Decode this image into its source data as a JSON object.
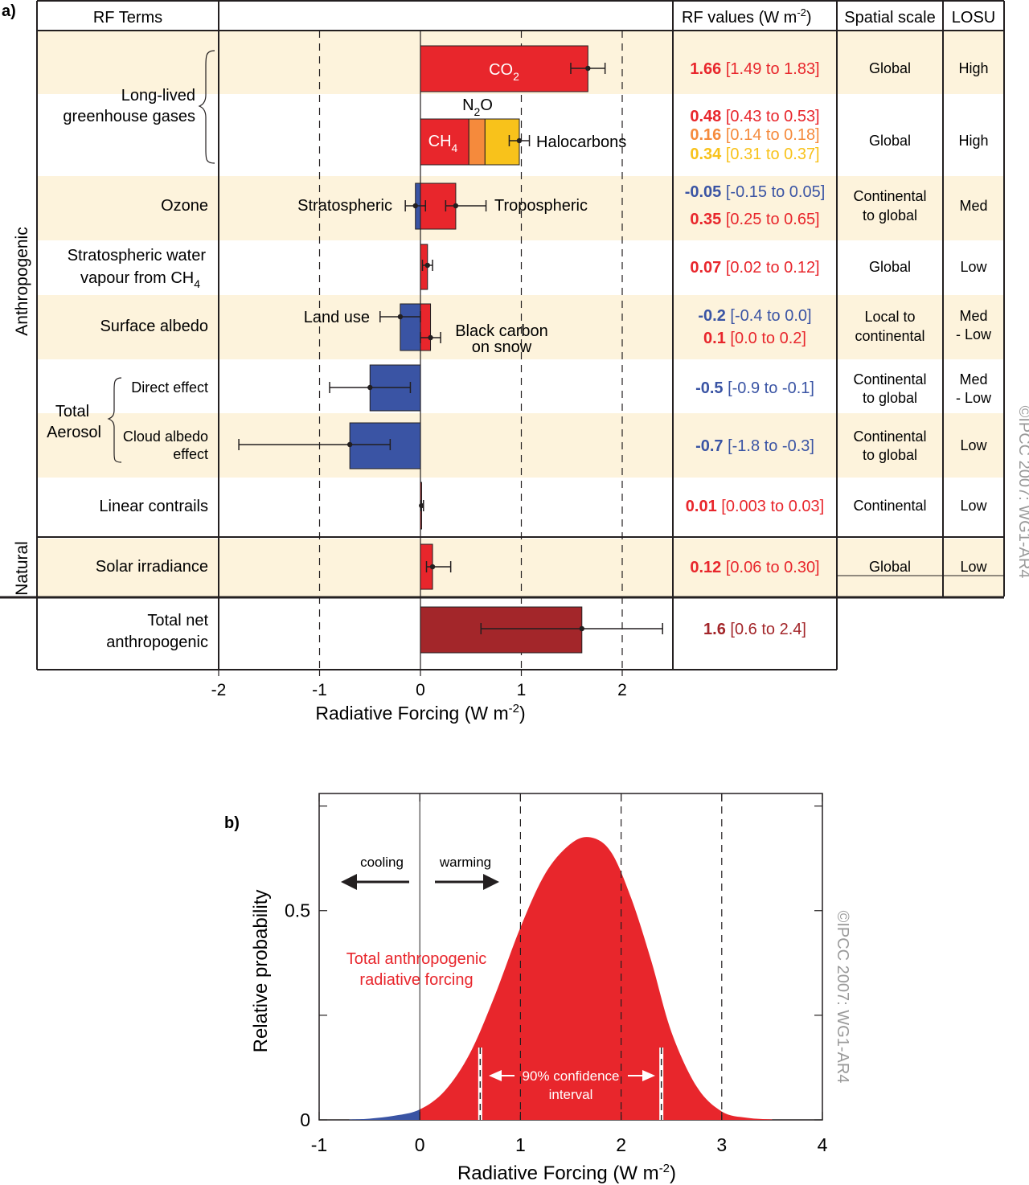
{
  "panel_a": {
    "panel_label": "a)",
    "headers": {
      "rf_terms": "RF Terms",
      "rf_values": "RF values (W m",
      "rf_values_exp": "-2",
      "rf_values_close": ")",
      "spatial_scale": "Spatial scale",
      "losu": "LOSU"
    },
    "groups": {
      "anthropogenic": "Anthropogenic",
      "natural": "Natural",
      "long_lived_line1": "Long-lived",
      "long_lived_line2": "greenhouse gases",
      "total_aerosol_line1": "Total",
      "total_aerosol_line2": "Aerosol"
    },
    "row_labels": {
      "ozone": "Ozone",
      "strat_water_line1": "Stratospheric water",
      "strat_water_line2": "vapour from CH",
      "strat_water_sub": "4",
      "surface_albedo": "Surface albedo",
      "direct_effect": "Direct effect",
      "cloud_albedo_line1": "Cloud albedo",
      "cloud_albedo_line2": "effect",
      "linear_contrails": "Linear contrails",
      "solar_irradiance": "Solar irradiance",
      "total_net_line1": "Total net",
      "total_net_line2": "anthropogenic"
    },
    "bar_labels": {
      "co2": "CO",
      "co2_sub": "2",
      "ch4": "CH",
      "ch4_sub": "4",
      "n2o": "N",
      "n2o_sub": "2",
      "n2o_tail": "O",
      "halocarbons": "Halocarbons",
      "stratospheric": "Stratospheric",
      "tropospheric": "Tropospheric",
      "land_use": "Land use",
      "black_carbon_line1": "Black carbon",
      "black_carbon_line2": "on snow"
    },
    "rf_values": [
      {
        "bold": "1.66",
        "range": "[1.49 to 1.83]",
        "color": "#e8262c"
      },
      {
        "bold": "0.48",
        "range": "[0.43 to 0.53]",
        "color": "#e8262c"
      },
      {
        "bold": "0.16",
        "range": "[0.14 to 0.18]",
        "color": "#f58a3c"
      },
      {
        "bold": "0.34",
        "range": "[0.31 to 0.37]",
        "color": "#f8c21b"
      },
      {
        "bold": "-0.05",
        "range": "[-0.15 to 0.05]",
        "color": "#3a54a4"
      },
      {
        "bold": "0.35",
        "range": "[0.25 to 0.65]",
        "color": "#e8262c"
      },
      {
        "bold": "0.07",
        "range": "[0.02 to 0.12]",
        "color": "#e8262c"
      },
      {
        "bold": "-0.2",
        "range": "[-0.4 to 0.0]",
        "color": "#3a54a4"
      },
      {
        "bold": "0.1",
        "range": "[0.0 to 0.2]",
        "color": "#e8262c"
      },
      {
        "bold": "-0.5",
        "range": "[-0.9 to -0.1]",
        "color": "#3a54a4"
      },
      {
        "bold": "-0.7",
        "range": "[-1.8 to -0.3]",
        "color": "#3a54a4"
      },
      {
        "bold": "0.01",
        "range": "[0.003 to 0.03]",
        "color": "#e8262c"
      },
      {
        "bold": "0.12",
        "range": "[0.06 to 0.30]",
        "color": "#e8262c"
      },
      {
        "bold": "1.6",
        "range": "[0.6 to 2.4]",
        "color": "#a3262a"
      }
    ],
    "spatial_scale": {
      "co2": "Global",
      "ghg": "Global",
      "ozone_line1": "Continental",
      "ozone_line2": "to global",
      "strat_water": "Global",
      "albedo_line1": "Local to",
      "albedo_line2": "continental",
      "direct_line1": "Continental",
      "direct_line2": "to global",
      "cloud_line1": "Continental",
      "cloud_line2": "to global",
      "contrails": "Continental",
      "solar": "Global"
    },
    "losu": {
      "co2": "High",
      "ghg": "High",
      "ozone": "Med",
      "strat_water": "Low",
      "albedo_line1": "Med",
      "albedo_line2": "- Low",
      "direct_line1": "Med",
      "direct_line2": "- Low",
      "cloud": "Low",
      "contrails": "Low",
      "solar": "Low"
    },
    "copyright": "©IPCC  2007: WG1-AR4"
  },
  "panel_b": {
    "panel_label": "b)",
    "cooling": "cooling",
    "warming": "warming",
    "annotation_line1": "Total anthropogenic",
    "annotation_line2": "radiative forcing",
    "ci_line1": "90% confidence",
    "ci_line2": "interval",
    "copyright": "©IPCC  2007: WG1-AR4"
  },
  "chart_data": [
    {
      "type": "bar",
      "orientation": "horizontal",
      "xlabel": "Radiative Forcing  (W m-2)",
      "xlim": [
        -2,
        2.5
      ],
      "xticks": [
        "-2",
        "-1",
        "0",
        "1",
        "2"
      ],
      "x_tick_values": [
        -2,
        -1,
        0,
        1,
        2
      ],
      "grid": "dashed vertical lines at -1, 1, 2",
      "bars": [
        {
          "term": "CO2",
          "value": 1.66,
          "low": 1.49,
          "high": 1.83,
          "color": "#e8262c"
        },
        {
          "term": "CH4",
          "value": 0.48,
          "low": 0.43,
          "high": 0.53,
          "color": "#e8262c",
          "stack": "ghg"
        },
        {
          "term": "N2O",
          "value": 0.16,
          "low": 0.14,
          "high": 0.18,
          "color": "#f58a3c",
          "stack": "ghg"
        },
        {
          "term": "Halocarbons",
          "value": 0.34,
          "low": 0.31,
          "high": 0.37,
          "color": "#f8c21b",
          "stack": "ghg"
        },
        {
          "term": "Stratospheric ozone",
          "value": -0.05,
          "low": -0.15,
          "high": 0.05,
          "color": "#3a54a4"
        },
        {
          "term": "Tropospheric ozone",
          "value": 0.35,
          "low": 0.25,
          "high": 0.65,
          "color": "#e8262c"
        },
        {
          "term": "Stratospheric water vapour from CH4",
          "value": 0.07,
          "low": 0.02,
          "high": 0.12,
          "color": "#e8262c"
        },
        {
          "term": "Land use",
          "value": -0.2,
          "low": -0.4,
          "high": 0.0,
          "color": "#3a54a4"
        },
        {
          "term": "Black carbon on snow",
          "value": 0.1,
          "low": 0.0,
          "high": 0.2,
          "color": "#e8262c"
        },
        {
          "term": "Direct effect",
          "value": -0.5,
          "low": -0.9,
          "high": -0.1,
          "color": "#3a54a4"
        },
        {
          "term": "Cloud albedo effect",
          "value": -0.7,
          "low": -1.8,
          "high": -0.3,
          "color": "#3a54a4"
        },
        {
          "term": "Linear contrails",
          "value": 0.01,
          "low": 0.003,
          "high": 0.03,
          "color": "#e8262c"
        },
        {
          "term": "Solar irradiance",
          "value": 0.12,
          "low": 0.06,
          "high": 0.3,
          "color": "#e8262c"
        },
        {
          "term": "Total net anthropogenic",
          "value": 1.6,
          "low": 0.6,
          "high": 2.4,
          "color": "#a3262a"
        }
      ]
    },
    {
      "type": "area",
      "xlabel": "Radiative Forcing  (W m-2)",
      "ylabel": "Relative probability",
      "xlim": [
        -1,
        4
      ],
      "ylim": [
        0,
        0.78
      ],
      "xticks": [
        "-1",
        "0",
        "1",
        "2",
        "3",
        "4"
      ],
      "x_tick_values": [
        -1,
        0,
        1,
        2,
        3,
        4
      ],
      "yticks": [
        "0",
        "0.5"
      ],
      "y_tick_values": [
        0,
        0.5
      ],
      "grid": "dashed vertical lines at 1, 2, 3",
      "series": [
        {
          "x": [
            -0.7,
            -0.5,
            -0.25,
            0,
            0.25,
            0.5,
            0.75,
            1.0,
            1.25,
            1.5,
            1.7,
            1.9,
            2.1,
            2.3,
            2.5,
            2.75,
            3.0,
            3.25,
            3.5
          ],
          "y": [
            0.001,
            0.003,
            0.01,
            0.025,
            0.07,
            0.16,
            0.3,
            0.46,
            0.59,
            0.66,
            0.675,
            0.64,
            0.53,
            0.38,
            0.21,
            0.08,
            0.02,
            0.005,
            0.001
          ],
          "color_negative": "#3a54a4",
          "color_positive": "#e8262c"
        }
      ],
      "confidence_interval_90": [
        0.6,
        2.4
      ]
    }
  ]
}
